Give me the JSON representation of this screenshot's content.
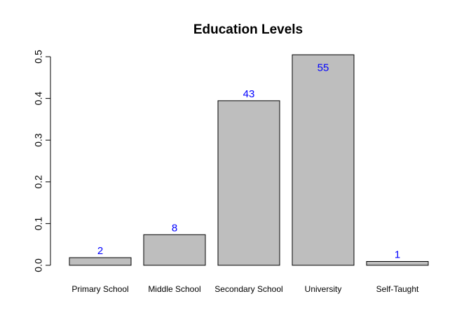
{
  "chart_data": {
    "type": "bar",
    "title": "Education Levels",
    "xlabel": "",
    "ylabel": "",
    "categories": [
      "Primary School",
      "Middle School",
      "Secondary School",
      "University",
      "Self-Taught"
    ],
    "values": [
      0.0183,
      0.0734,
      0.3945,
      0.5046,
      0.0092
    ],
    "counts": [
      "2",
      "8",
      "43",
      "55",
      "1"
    ],
    "ylim": [
      0,
      0.5
    ],
    "yticks": [
      "0.0",
      "0.1",
      "0.2",
      "0.3",
      "0.4",
      "0.5"
    ],
    "grid": false,
    "bar_color": "#bebebe",
    "bar_border_color": "#000000",
    "label_color": "#0000ff",
    "count_label_inside_for": [
      "University"
    ]
  }
}
